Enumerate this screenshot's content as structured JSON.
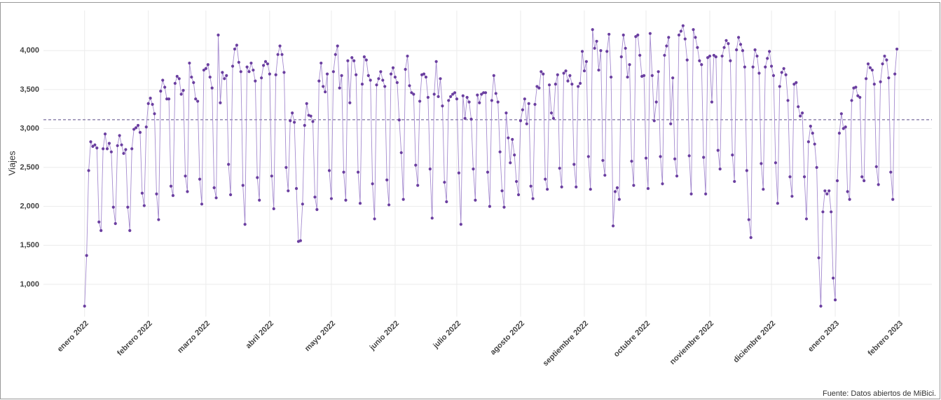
{
  "chart_data": {
    "type": "line",
    "y_label": "Viajes",
    "caption": "Fuente: Datos abiertos de MiBici.",
    "xlim": [
      "2021-12-12",
      "2023-02-17"
    ],
    "ylim": [
      585,
      4515
    ],
    "xticks": [
      {
        "value": "2022-01-01",
        "label": "enero 2022"
      },
      {
        "value": "2022-02-01",
        "label": "febrero 2022"
      },
      {
        "value": "2022-03-01",
        "label": "marzo 2022"
      },
      {
        "value": "2022-04-01",
        "label": "abril 2022"
      },
      {
        "value": "2022-05-01",
        "label": "mayo 2022"
      },
      {
        "value": "2022-06-01",
        "label": "junio 2022"
      },
      {
        "value": "2022-07-01",
        "label": "julio 2022"
      },
      {
        "value": "2022-08-01",
        "label": "agosto 2022"
      },
      {
        "value": "2022-09-01",
        "label": "septiembre 2022"
      },
      {
        "value": "2022-10-01",
        "label": "octubre 2022"
      },
      {
        "value": "2022-11-01",
        "label": "noviembre 2022"
      },
      {
        "value": "2022-12-01",
        "label": "diciembre 2022"
      },
      {
        "value": "2023-01-01",
        "label": "enero 2023"
      },
      {
        "value": "2023-02-01",
        "label": "febrero 2023"
      }
    ],
    "yticks": [
      {
        "value": 1000,
        "label": "1,000"
      },
      {
        "value": 1500,
        "label": "1,500"
      },
      {
        "value": 2000,
        "label": "2,000"
      },
      {
        "value": 2500,
        "label": "2,500"
      },
      {
        "value": 3000,
        "label": "3,000"
      },
      {
        "value": 3500,
        "label": "3,500"
      },
      {
        "value": 4000,
        "label": "4,000"
      }
    ],
    "grid": true,
    "reference_line": 3113,
    "line_color": "#a58bcf",
    "point_color": "#6b3fa0",
    "reference_color": "#7b6f9e",
    "x": [
      "2022-01-01",
      "2022-01-02",
      "2022-01-03",
      "2022-01-04",
      "2022-01-05",
      "2022-01-06",
      "2022-01-07",
      "2022-01-08",
      "2022-01-09",
      "2022-01-10",
      "2022-01-11",
      "2022-01-12",
      "2022-01-13",
      "2022-01-14",
      "2022-01-15",
      "2022-01-16",
      "2022-01-17",
      "2022-01-18",
      "2022-01-19",
      "2022-01-20",
      "2022-01-21",
      "2022-01-22",
      "2022-01-23",
      "2022-01-24",
      "2022-01-25",
      "2022-01-26",
      "2022-01-27",
      "2022-01-28",
      "2022-01-29",
      "2022-01-30",
      "2022-01-31",
      "2022-02-01",
      "2022-02-02",
      "2022-02-03",
      "2022-02-04",
      "2022-02-05",
      "2022-02-06",
      "2022-02-07",
      "2022-02-08",
      "2022-02-09",
      "2022-02-10",
      "2022-02-11",
      "2022-02-12",
      "2022-02-13",
      "2022-02-14",
      "2022-02-15",
      "2022-02-16",
      "2022-02-17",
      "2022-02-18",
      "2022-02-19",
      "2022-02-20",
      "2022-02-21",
      "2022-02-22",
      "2022-02-23",
      "2022-02-24",
      "2022-02-25",
      "2022-02-26",
      "2022-02-27",
      "2022-02-28",
      "2022-03-01",
      "2022-03-02",
      "2022-03-03",
      "2022-03-04",
      "2022-03-05",
      "2022-03-06",
      "2022-03-07",
      "2022-03-08",
      "2022-03-09",
      "2022-03-10",
      "2022-03-11",
      "2022-03-12",
      "2022-03-13",
      "2022-03-14",
      "2022-03-15",
      "2022-03-16",
      "2022-03-17",
      "2022-03-18",
      "2022-03-19",
      "2022-03-20",
      "2022-03-21",
      "2022-03-22",
      "2022-03-23",
      "2022-03-24",
      "2022-03-25",
      "2022-03-26",
      "2022-03-27",
      "2022-03-28",
      "2022-03-29",
      "2022-03-30",
      "2022-03-31",
      "2022-04-01",
      "2022-04-02",
      "2022-04-03",
      "2022-04-04",
      "2022-04-05",
      "2022-04-06",
      "2022-04-07",
      "2022-04-08",
      "2022-04-09",
      "2022-04-10",
      "2022-04-11",
      "2022-04-12",
      "2022-04-13",
      "2022-04-14",
      "2022-04-15",
      "2022-04-16",
      "2022-04-17",
      "2022-04-18",
      "2022-04-19",
      "2022-04-20",
      "2022-04-21",
      "2022-04-22",
      "2022-04-23",
      "2022-04-24",
      "2022-04-25",
      "2022-04-26",
      "2022-04-27",
      "2022-04-28",
      "2022-04-29",
      "2022-04-30",
      "2022-05-01",
      "2022-05-02",
      "2022-05-03",
      "2022-05-04",
      "2022-05-05",
      "2022-05-06",
      "2022-05-07",
      "2022-05-08",
      "2022-05-09",
      "2022-05-10",
      "2022-05-11",
      "2022-05-12",
      "2022-05-13",
      "2022-05-14",
      "2022-05-15",
      "2022-05-16",
      "2022-05-17",
      "2022-05-18",
      "2022-05-19",
      "2022-05-20",
      "2022-05-21",
      "2022-05-22",
      "2022-05-23",
      "2022-05-24",
      "2022-05-25",
      "2022-05-26",
      "2022-05-27",
      "2022-05-28",
      "2022-05-29",
      "2022-05-30",
      "2022-05-31",
      "2022-06-01",
      "2022-06-02",
      "2022-06-03",
      "2022-06-04",
      "2022-06-05",
      "2022-06-06",
      "2022-06-07",
      "2022-06-08",
      "2022-06-09",
      "2022-06-10",
      "2022-06-11",
      "2022-06-12",
      "2022-06-13",
      "2022-06-14",
      "2022-06-15",
      "2022-06-16",
      "2022-06-17",
      "2022-06-18",
      "2022-06-19",
      "2022-06-20",
      "2022-06-21",
      "2022-06-22",
      "2022-06-23",
      "2022-06-24",
      "2022-06-25",
      "2022-06-26",
      "2022-06-27",
      "2022-06-28",
      "2022-06-29",
      "2022-06-30",
      "2022-07-01",
      "2022-07-02",
      "2022-07-03",
      "2022-07-04",
      "2022-07-05",
      "2022-07-06",
      "2022-07-07",
      "2022-07-08",
      "2022-07-09",
      "2022-07-10",
      "2022-07-11",
      "2022-07-12",
      "2022-07-13",
      "2022-07-14",
      "2022-07-15",
      "2022-07-16",
      "2022-07-17",
      "2022-07-18",
      "2022-07-19",
      "2022-07-20",
      "2022-07-21",
      "2022-07-22",
      "2022-07-23",
      "2022-07-24",
      "2022-07-25",
      "2022-07-26",
      "2022-07-27",
      "2022-07-28",
      "2022-07-29",
      "2022-07-30",
      "2022-07-31",
      "2022-08-01",
      "2022-08-02",
      "2022-08-03",
      "2022-08-04",
      "2022-08-05",
      "2022-08-06",
      "2022-08-07",
      "2022-08-08",
      "2022-08-09",
      "2022-08-10",
      "2022-08-11",
      "2022-08-12",
      "2022-08-13",
      "2022-08-14",
      "2022-08-15",
      "2022-08-16",
      "2022-08-17",
      "2022-08-18",
      "2022-08-19",
      "2022-08-20",
      "2022-08-21",
      "2022-08-22",
      "2022-08-23",
      "2022-08-24",
      "2022-08-25",
      "2022-08-26",
      "2022-08-27",
      "2022-08-28",
      "2022-08-29",
      "2022-08-30",
      "2022-08-31",
      "2022-09-01",
      "2022-09-02",
      "2022-09-03",
      "2022-09-04",
      "2022-09-05",
      "2022-09-06",
      "2022-09-07",
      "2022-09-08",
      "2022-09-09",
      "2022-09-10",
      "2022-09-11",
      "2022-09-12",
      "2022-09-13",
      "2022-09-14",
      "2022-09-15",
      "2022-09-16",
      "2022-09-17",
      "2022-09-18",
      "2022-09-19",
      "2022-09-20",
      "2022-09-21",
      "2022-09-22",
      "2022-09-23",
      "2022-09-24",
      "2022-09-25",
      "2022-09-26",
      "2022-09-27",
      "2022-09-28",
      "2022-09-29",
      "2022-09-30",
      "2022-10-01",
      "2022-10-02",
      "2022-10-03",
      "2022-10-04",
      "2022-10-05",
      "2022-10-06",
      "2022-10-07",
      "2022-10-08",
      "2022-10-09",
      "2022-10-10",
      "2022-10-11",
      "2022-10-12",
      "2022-10-13",
      "2022-10-14",
      "2022-10-15",
      "2022-10-16",
      "2022-10-17",
      "2022-10-18",
      "2022-10-19",
      "2022-10-20",
      "2022-10-21",
      "2022-10-22",
      "2022-10-23",
      "2022-10-24",
      "2022-10-25",
      "2022-10-26",
      "2022-10-27",
      "2022-10-28",
      "2022-10-29",
      "2022-10-30",
      "2022-10-31",
      "2022-11-01",
      "2022-11-02",
      "2022-11-03",
      "2022-11-04",
      "2022-11-05",
      "2022-11-06",
      "2022-11-07",
      "2022-11-08",
      "2022-11-09",
      "2022-11-10",
      "2022-11-11",
      "2022-11-12",
      "2022-11-13",
      "2022-11-14",
      "2022-11-15",
      "2022-11-16",
      "2022-11-17",
      "2022-11-18",
      "2022-11-19",
      "2022-11-20",
      "2022-11-21",
      "2022-11-22",
      "2022-11-23",
      "2022-11-24",
      "2022-11-25",
      "2022-11-26",
      "2022-11-27",
      "2022-11-28",
      "2022-11-29",
      "2022-11-30",
      "2022-12-01",
      "2022-12-02",
      "2022-12-03",
      "2022-12-04",
      "2022-12-05",
      "2022-12-06",
      "2022-12-07",
      "2022-12-08",
      "2022-12-09",
      "2022-12-10",
      "2022-12-11",
      "2022-12-12",
      "2022-12-13",
      "2022-12-14",
      "2022-12-15",
      "2022-12-16",
      "2022-12-17",
      "2022-12-18",
      "2022-12-19",
      "2022-12-20",
      "2022-12-21",
      "2022-12-22",
      "2022-12-23",
      "2022-12-24",
      "2022-12-25",
      "2022-12-26",
      "2022-12-27",
      "2022-12-28",
      "2022-12-29",
      "2022-12-30",
      "2022-12-31",
      "2023-01-01",
      "2023-01-02",
      "2023-01-03",
      "2023-01-04",
      "2023-01-05",
      "2023-01-06",
      "2023-01-07",
      "2023-01-08",
      "2023-01-09",
      "2023-01-10",
      "2023-01-11",
      "2023-01-12",
      "2023-01-13",
      "2023-01-14",
      "2023-01-15",
      "2023-01-16",
      "2023-01-17",
      "2023-01-18",
      "2023-01-19",
      "2023-01-20",
      "2023-01-21",
      "2023-01-22",
      "2023-01-23",
      "2023-01-24",
      "2023-01-25",
      "2023-01-26",
      "2023-01-27",
      "2023-01-28",
      "2023-01-29",
      "2023-01-30",
      "2023-01-31"
    ],
    "series": [
      {
        "name": "Viajes",
        "values": [
          720,
          1370,
          2460,
          2830,
          2770,
          2790,
          2750,
          1800,
          1690,
          2740,
          2930,
          2740,
          2810,
          2700,
          1990,
          1780,
          2780,
          2910,
          2790,
          2680,
          2730,
          1990,
          1690,
          2740,
          2990,
          3010,
          3040,
          2950,
          2170,
          2010,
          3020,
          3320,
          3390,
          3310,
          3190,
          2160,
          1830,
          3480,
          3620,
          3530,
          3380,
          3380,
          2260,
          2140,
          3580,
          3670,
          3640,
          3440,
          3490,
          2390,
          2190,
          3840,
          3660,
          3590,
          3380,
          3350,
          2350,
          2030,
          3750,
          3770,
          3820,
          3660,
          3520,
          2240,
          2110,
          4200,
          3330,
          3720,
          3640,
          3680,
          2540,
          2150,
          3800,
          4020,
          4070,
          3850,
          3730,
          2270,
          1770,
          3790,
          3730,
          3840,
          3750,
          3610,
          2370,
          2080,
          3650,
          3810,
          3860,
          3830,
          3700,
          2390,
          1970,
          3690,
          3950,
          4060,
          3950,
          3720,
          2500,
          2200,
          3100,
          3200,
          3080,
          2230,
          1550,
          1560,
          2030,
          3040,
          3320,
          3170,
          3160,
          3090,
          2120,
          1960,
          3610,
          3840,
          3540,
          3470,
          3700,
          2460,
          2100,
          3730,
          3950,
          4060,
          3520,
          3680,
          2440,
          2080,
          3870,
          3330,
          3910,
          3870,
          3690,
          2440,
          2040,
          3570,
          3920,
          3880,
          3680,
          3620,
          2290,
          1840,
          3560,
          3640,
          3730,
          3620,
          3540,
          2340,
          2020,
          3700,
          3780,
          3660,
          3590,
          3110,
          2690,
          2090,
          3760,
          3930,
          3550,
          3460,
          3440,
          2530,
          2270,
          3350,
          3690,
          3700,
          3660,
          3400,
          2480,
          1850,
          3440,
          3860,
          3410,
          3640,
          3290,
          2310,
          2060,
          3360,
          3410,
          3440,
          3460,
          3380,
          2430,
          1770,
          3420,
          3130,
          3400,
          3340,
          3120,
          2480,
          2080,
          3430,
          3330,
          3440,
          3460,
          3460,
          2440,
          2000,
          3360,
          3680,
          3450,
          3340,
          2700,
          2200,
          1990,
          3200,
          2880,
          2560,
          2860,
          2660,
          2320,
          2150,
          3100,
          3240,
          3380,
          3060,
          3320,
          2260,
          2100,
          3310,
          3540,
          3520,
          3730,
          3700,
          2350,
          2220,
          3560,
          3200,
          3130,
          3570,
          3690,
          2490,
          2250,
          3710,
          3740,
          3610,
          3680,
          3570,
          2540,
          2250,
          3540,
          3580,
          3990,
          3740,
          3860,
          2640,
          2220,
          4270,
          4030,
          4120,
          3750,
          4000,
          2590,
          2400,
          3990,
          4210,
          3660,
          1750,
          2190,
          2240,
          2090,
          3920,
          4200,
          4030,
          3660,
          3820,
          2580,
          2270,
          4180,
          4200,
          3940,
          3670,
          3680,
          2620,
          2230,
          4220,
          3680,
          3100,
          3340,
          3730,
          2640,
          2290,
          3940,
          4060,
          4170,
          3060,
          3650,
          2610,
          2390,
          4200,
          4250,
          4320,
          4150,
          3880,
          2650,
          2160,
          4270,
          4170,
          4040,
          3870,
          3820,
          2630,
          2160,
          3910,
          3930,
          3340,
          3940,
          3920,
          2720,
          2480,
          3930,
          4040,
          4130,
          4090,
          3870,
          2660,
          2320,
          4010,
          4170,
          4080,
          4000,
          3790,
          2460,
          1830,
          1600,
          3790,
          4010,
          3930,
          3710,
          2550,
          2220,
          3790,
          3900,
          3990,
          3800,
          3680,
          2560,
          2040,
          3540,
          3720,
          3770,
          3690,
          3360,
          2380,
          2130,
          3570,
          3590,
          3280,
          3160,
          3200,
          2380,
          1840,
          2830,
          3030,
          2940,
          2800,
          2500,
          1340,
          720,
          1930,
          2200,
          2160,
          2200,
          1930,
          1080,
          800,
          2330,
          2940,
          3190,
          3000,
          3020,
          2190,
          2090,
          3360,
          3520,
          3530,
          3420,
          3400,
          2380,
          2330,
          3640,
          3830,
          3780,
          3750,
          3570,
          2510,
          2280,
          3600,
          3830,
          3930,
          3880,
          3650,
          2440,
          2090,
          3700,
          4020
        ]
      }
    ]
  }
}
